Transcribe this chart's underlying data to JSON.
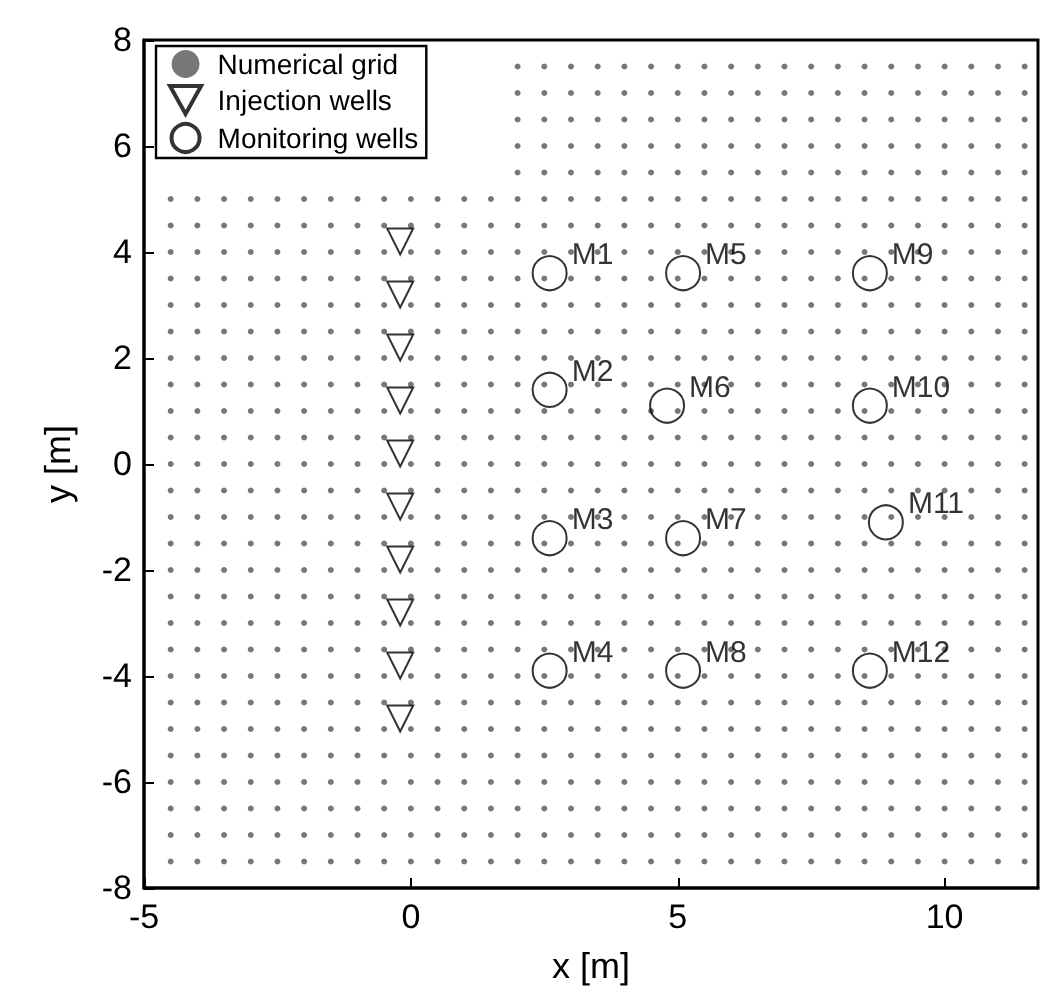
{
  "chart_data": {
    "type": "scatter",
    "xlabel": "x [m]",
    "ylabel": "y [m]",
    "xlim": [
      -5,
      11.75
    ],
    "ylim": [
      -8,
      8
    ],
    "xticks": [
      -5,
      0,
      5,
      10
    ],
    "yticks": [
      -8,
      -6,
      -4,
      -2,
      0,
      2,
      4,
      6,
      8
    ],
    "grid": false,
    "legend": "top left",
    "series": [
      {
        "name": "Numerical grid",
        "color": "#555555",
        "marker": "circle",
        "x": [
          2,
          2.5,
          3,
          3.5,
          4,
          4.5,
          5,
          5.5,
          6,
          6.5,
          7,
          7.5,
          8,
          8.5,
          9,
          9.5,
          10,
          10.5,
          11,
          11.5,
          2,
          2.5,
          3,
          3.5,
          4,
          4.5,
          5,
          5.5,
          6,
          6.5,
          7,
          7.5,
          8,
          8.5,
          9,
          9.5,
          10,
          10.5,
          11,
          11.5,
          2,
          2.5,
          3,
          3.5,
          4,
          4.5,
          5,
          5.5,
          6,
          6.5,
          7,
          7.5,
          8,
          8.5,
          9,
          9.5,
          10,
          10.5,
          11,
          11.5,
          2,
          2.5,
          3,
          3.5,
          4,
          4.5,
          5,
          5.5,
          6,
          6.5,
          7,
          7.5,
          8,
          8.5,
          9,
          9.5,
          10,
          10.5,
          11,
          11.5,
          2,
          2.5,
          3,
          3.5,
          4,
          4.5,
          5,
          5.5,
          6,
          6.5,
          7,
          7.5,
          8,
          8.5,
          9,
          9.5,
          10,
          10.5,
          11,
          11.5,
          -4.5,
          -4,
          -3.5,
          -3,
          -2.5,
          -2,
          -1.5,
          -1,
          -0.5,
          0,
          0.5,
          1,
          1.5,
          2,
          2.5,
          3,
          3.5,
          4,
          4.5,
          5,
          5.5,
          6,
          6.5,
          7,
          7.5,
          8,
          8.5,
          9,
          9.5,
          10,
          10.5,
          11,
          11.5,
          -4.5,
          -4,
          -3.5,
          -3,
          -2.5,
          -2,
          -1.5,
          -1,
          -0.5,
          0,
          0.5,
          1,
          1.5,
          2,
          2.5,
          3,
          3.5,
          4,
          4.5,
          5,
          5.5,
          6,
          6.5,
          7,
          7.5,
          8,
          8.5,
          9,
          9.5,
          10,
          10.5,
          11,
          11.5,
          -4.5,
          -4,
          -3.5,
          -3,
          -2.5,
          -2,
          -1.5,
          -1,
          -0.5,
          0,
          0.5,
          1,
          1.5,
          2,
          2.5,
          3,
          3.5,
          4,
          4.5,
          5,
          5.5,
          6,
          6.5,
          7,
          7.5,
          8,
          8.5,
          9,
          9.5,
          10,
          10.5,
          11,
          11.5,
          -4.5,
          -4,
          -3.5,
          -3,
          -2.5,
          -2,
          -1.5,
          -1,
          -0.5,
          0,
          0.5,
          1,
          1.5,
          2,
          2.5,
          3,
          3.5,
          4,
          4.5,
          5,
          5.5,
          6,
          6.5,
          7,
          7.5,
          8,
          8.5,
          9,
          9.5,
          10,
          10.5,
          11,
          11.5,
          -4.5,
          -4,
          -3.5,
          -3,
          -2.5,
          -2,
          -1.5,
          -1,
          -0.5,
          0,
          0.5,
          1,
          1.5,
          2,
          2.5,
          3,
          3.5,
          4,
          4.5,
          5,
          5.5,
          6,
          6.5,
          7,
          7.5,
          8,
          8.5,
          9,
          9.5,
          10,
          10.5,
          11,
          11.5,
          -4.5,
          -4,
          -3.5,
          -3,
          -2.5,
          -2,
          -1.5,
          -1,
          -0.5,
          0,
          0.5,
          1,
          1.5,
          2,
          2.5,
          3,
          3.5,
          4,
          4.5,
          5,
          5.5,
          6,
          6.5,
          7,
          7.5,
          8,
          8.5,
          9,
          9.5,
          10,
          10.5,
          11,
          11.5,
          -4.5,
          -4,
          -3.5,
          -3,
          -2.5,
          -2,
          -1.5,
          -1,
          -0.5,
          0,
          0.5,
          1,
          1.5,
          2,
          2.5,
          3,
          3.5,
          4,
          4.5,
          5,
          5.5,
          6,
          6.5,
          7,
          7.5,
          8,
          8.5,
          9,
          9.5,
          10,
          10.5,
          11,
          11.5,
          -4.5,
          -4,
          -3.5,
          -3,
          -2.5,
          -2,
          -1.5,
          -1,
          -0.5,
          0,
          0.5,
          1,
          1.5,
          2,
          2.5,
          3,
          3.5,
          4,
          4.5,
          5,
          5.5,
          6,
          6.5,
          7,
          7.5,
          8,
          8.5,
          9,
          9.5,
          10,
          10.5,
          11,
          11.5,
          -4.5,
          -4,
          -3.5,
          -3,
          -2.5,
          -2,
          -1.5,
          -1,
          -0.5,
          0,
          0.5,
          1,
          1.5,
          2,
          2.5,
          3,
          3.5,
          4,
          4.5,
          5,
          5.5,
          6,
          6.5,
          7,
          7.5,
          8,
          8.5,
          9,
          9.5,
          10,
          10.5,
          11,
          11.5,
          -4.5,
          -4,
          -3.5,
          -3,
          -2.5,
          -2,
          -1.5,
          -1,
          -0.5,
          0,
          0.5,
          1,
          1.5,
          2,
          2.5,
          3,
          3.5,
          4,
          4.5,
          5,
          5.5,
          6,
          6.5,
          7,
          7.5,
          8,
          8.5,
          9,
          9.5,
          10,
          10.5,
          11,
          11.5,
          -4.5,
          -4,
          -3.5,
          -3,
          -2.5,
          -2,
          -1.5,
          -1,
          -0.5,
          0,
          0.5,
          1,
          1.5,
          2,
          2.5,
          3,
          3.5,
          4,
          4.5,
          5,
          5.5,
          6,
          6.5,
          7,
          7.5,
          8,
          8.5,
          9,
          9.5,
          10,
          10.5,
          11,
          11.5,
          -4.5,
          -4,
          -3.5,
          -3,
          -2.5,
          -2,
          -1.5,
          -1,
          -0.5,
          0,
          0.5,
          1,
          1.5,
          2,
          2.5,
          3,
          3.5,
          4,
          4.5,
          5,
          5.5,
          6,
          6.5,
          7,
          7.5,
          8,
          8.5,
          9,
          9.5,
          10,
          10.5,
          11,
          11.5,
          -4.5,
          -4,
          -3.5,
          -3,
          -2.5,
          -2,
          -1.5,
          -1,
          -0.5,
          0,
          0.5,
          1,
          1.5,
          2,
          2.5,
          3,
          3.5,
          4,
          4.5,
          5,
          5.5,
          6,
          6.5,
          7,
          7.5,
          8,
          8.5,
          9,
          9.5,
          10,
          10.5,
          11,
          11.5,
          -4.5,
          -4,
          -3.5,
          -3,
          -2.5,
          -2,
          -1.5,
          -1,
          -0.5,
          0,
          0.5,
          1,
          1.5,
          2,
          2.5,
          3,
          3.5,
          4,
          4.5,
          5,
          5.5,
          6,
          6.5,
          7,
          7.5,
          8,
          8.5,
          9,
          9.5,
          10,
          10.5,
          11,
          11.5,
          -4.5,
          -4,
          -3.5,
          -3,
          -2.5,
          -2,
          -1.5,
          -1,
          -0.5,
          0,
          0.5,
          1,
          1.5,
          2,
          2.5,
          3,
          3.5,
          4,
          4.5,
          5,
          5.5,
          6,
          6.5,
          7,
          7.5,
          8,
          8.5,
          9,
          9.5,
          10,
          10.5,
          11,
          11.5,
          -4.5,
          -4,
          -3.5,
          -3,
          -2.5,
          -2,
          -1.5,
          -1,
          -0.5,
          0,
          0.5,
          1,
          1.5,
          2,
          2.5,
          3,
          3.5,
          4,
          4.5,
          5,
          5.5,
          6,
          6.5,
          7,
          7.5,
          8,
          8.5,
          9,
          9.5,
          10,
          10.5,
          11,
          11.5,
          -4.5,
          -4,
          -3.5,
          -3,
          -2.5,
          -2,
          -1.5,
          -1,
          -0.5,
          0,
          0.5,
          1,
          1.5,
          2,
          2.5,
          3,
          3.5,
          4,
          4.5,
          5,
          5.5,
          6,
          6.5,
          7,
          7.5,
          8,
          8.5,
          9,
          9.5,
          10,
          10.5,
          11,
          11.5,
          -4.5,
          -4,
          -3.5,
          -3,
          -2.5,
          -2,
          -1.5,
          -1,
          -0.5,
          0,
          0.5,
          1,
          1.5,
          2,
          2.5,
          3,
          3.5,
          4,
          4.5,
          5,
          5.5,
          6,
          6.5,
          7,
          7.5,
          8,
          8.5,
          9,
          9.5,
          10,
          10.5,
          11,
          11.5,
          -4.5,
          -4,
          -3.5,
          -3,
          -2.5,
          -2,
          -1.5,
          -1,
          -0.5,
          0,
          0.5,
          1,
          1.5,
          2,
          2.5,
          3,
          3.5,
          4,
          4.5,
          5,
          5.5,
          6,
          6.5,
          7,
          7.5,
          8,
          8.5,
          9,
          9.5,
          10,
          10.5,
          11,
          11.5,
          -4.5,
          -4,
          -3.5,
          -3,
          -2.5,
          -2,
          -1.5,
          -1,
          -0.5,
          0,
          0.5,
          1,
          1.5,
          2,
          2.5,
          3,
          3.5,
          4,
          4.5,
          5,
          5.5,
          6,
          6.5,
          7,
          7.5,
          8,
          8.5,
          9,
          9.5,
          10,
          10.5,
          11,
          11.5,
          -4.5,
          -4,
          -3.5,
          -3,
          -2.5,
          -2,
          -1.5,
          -1,
          -0.5,
          0,
          0.5,
          1,
          1.5,
          2,
          2.5,
          3,
          3.5,
          4,
          4.5,
          5,
          5.5,
          6,
          6.5,
          7,
          7.5,
          8,
          8.5,
          9,
          9.5,
          10,
          10.5,
          11,
          11.5,
          -4.5,
          -4,
          -3.5,
          -3,
          -2.5,
          -2,
          -1.5,
          -1,
          -0.5,
          0,
          0.5,
          1,
          1.5,
          2,
          2.5,
          3,
          3.5,
          4,
          4.5,
          5,
          5.5,
          6,
          6.5,
          7,
          7.5,
          8,
          8.5,
          9,
          9.5,
          10,
          10.5,
          11,
          11.5,
          -4.5,
          -4,
          -3.5,
          -3,
          -2.5,
          -2,
          -1.5,
          -1,
          -0.5,
          0,
          0.5,
          1,
          1.5,
          2,
          2.5,
          3,
          3.5,
          4,
          4.5,
          5,
          5.5,
          6,
          6.5,
          7,
          7.5,
          8,
          8.5,
          9,
          9.5,
          10,
          10.5,
          11,
          11.5,
          -4.5,
          -4,
          -3.5,
          -3,
          -2.5,
          -2,
          -1.5,
          -1,
          -0.5,
          0,
          0.5,
          1,
          1.5,
          2,
          2.5,
          3,
          3.5,
          4,
          4.5,
          5,
          5.5,
          6,
          6.5,
          7,
          7.5,
          8,
          8.5,
          9,
          9.5,
          10,
          10.5,
          11,
          11.5,
          -4.5,
          -4,
          -3.5,
          -3,
          -2.5,
          -2,
          -1.5,
          -1,
          -0.5,
          0,
          0.5,
          1,
          1.5,
          2,
          2.5,
          3,
          3.5,
          4,
          4.5,
          5,
          5.5,
          6,
          6.5,
          7,
          7.5,
          8,
          8.5,
          9,
          9.5,
          10,
          10.5,
          11,
          11.5,
          -4.5,
          -4,
          -3.5,
          -3,
          -2.5,
          -2,
          -1.5,
          -1,
          -0.5,
          0,
          0.5,
          1,
          1.5,
          2,
          2.5,
          3,
          3.5,
          4,
          4.5,
          5,
          5.5,
          6,
          6.5,
          7,
          7.5,
          8,
          8.5,
          9,
          9.5,
          10,
          10.5,
          11,
          11.5
        ],
        "values": [
          7.5,
          7.5,
          7.5,
          7.5,
          7.5,
          7.5,
          7.5,
          7.5,
          7.5,
          7.5,
          7.5,
          7.5,
          7.5,
          7.5,
          7.5,
          7.5,
          7.5,
          7.5,
          7.5,
          7.5,
          7,
          7,
          7,
          7,
          7,
          7,
          7,
          7,
          7,
          7,
          7,
          7,
          7,
          7,
          7,
          7,
          7,
          7,
          7,
          7,
          6.5,
          6.5,
          6.5,
          6.5,
          6.5,
          6.5,
          6.5,
          6.5,
          6.5,
          6.5,
          6.5,
          6.5,
          6.5,
          6.5,
          6.5,
          6.5,
          6.5,
          6.5,
          6.5,
          6.5,
          6,
          6,
          6,
          6,
          6,
          6,
          6,
          6,
          6,
          6,
          6,
          6,
          6,
          6,
          6,
          6,
          6,
          6,
          6,
          6,
          5.5,
          5.5,
          5.5,
          5.5,
          5.5,
          5.5,
          5.5,
          5.5,
          5.5,
          5.5,
          5.5,
          5.5,
          5.5,
          5.5,
          5.5,
          5.5,
          5.5,
          5.5,
          5.5,
          5.5,
          5,
          5,
          5,
          5,
          5,
          5,
          5,
          5,
          5,
          5,
          5,
          5,
          5,
          5,
          5,
          5,
          5,
          5,
          5,
          5,
          5,
          5,
          5,
          5,
          5,
          5,
          5,
          5,
          5,
          5,
          5,
          5,
          5,
          4.5,
          4.5,
          4.5,
          4.5,
          4.5,
          4.5,
          4.5,
          4.5,
          4.5,
          4.5,
          4.5,
          4.5,
          4.5,
          4.5,
          4.5,
          4.5,
          4.5,
          4.5,
          4.5,
          4.5,
          4.5,
          4.5,
          4.5,
          4.5,
          4.5,
          4.5,
          4.5,
          4.5,
          4.5,
          4.5,
          4.5,
          4.5,
          4.5,
          4,
          4,
          4,
          4,
          4,
          4,
          4,
          4,
          4,
          4,
          4,
          4,
          4,
          4,
          4,
          4,
          4,
          4,
          4,
          4,
          4,
          4,
          4,
          4,
          4,
          4,
          4,
          4,
          4,
          4,
          4,
          4,
          4,
          3.5,
          3.5,
          3.5,
          3.5,
          3.5,
          3.5,
          3.5,
          3.5,
          3.5,
          3.5,
          3.5,
          3.5,
          3.5,
          3.5,
          3.5,
          3.5,
          3.5,
          3.5,
          3.5,
          3.5,
          3.5,
          3.5,
          3.5,
          3.5,
          3.5,
          3.5,
          3.5,
          3.5,
          3.5,
          3.5,
          3.5,
          3.5,
          3.5,
          3,
          3,
          3,
          3,
          3,
          3,
          3,
          3,
          3,
          3,
          3,
          3,
          3,
          3,
          3,
          3,
          3,
          3,
          3,
          3,
          3,
          3,
          3,
          3,
          3,
          3,
          3,
          3,
          3,
          3,
          3,
          3,
          3,
          2.5,
          2.5,
          2.5,
          2.5,
          2.5,
          2.5,
          2.5,
          2.5,
          2.5,
          2.5,
          2.5,
          2.5,
          2.5,
          2.5,
          2.5,
          2.5,
          2.5,
          2.5,
          2.5,
          2.5,
          2.5,
          2.5,
          2.5,
          2.5,
          2.5,
          2.5,
          2.5,
          2.5,
          2.5,
          2.5,
          2.5,
          2.5,
          2.5,
          2,
          2,
          2,
          2,
          2,
          2,
          2,
          2,
          2,
          2,
          2,
          2,
          2,
          2,
          2,
          2,
          2,
          2,
          2,
          2,
          2,
          2,
          2,
          2,
          2,
          2,
          2,
          2,
          2,
          2,
          2,
          2,
          2,
          1.5,
          1.5,
          1.5,
          1.5,
          1.5,
          1.5,
          1.5,
          1.5,
          1.5,
          1.5,
          1.5,
          1.5,
          1.5,
          1.5,
          1.5,
          1.5,
          1.5,
          1.5,
          1.5,
          1.5,
          1.5,
          1.5,
          1.5,
          1.5,
          1.5,
          1.5,
          1.5,
          1.5,
          1.5,
          1.5,
          1.5,
          1.5,
          1.5,
          1,
          1,
          1,
          1,
          1,
          1,
          1,
          1,
          1,
          1,
          1,
          1,
          1,
          1,
          1,
          1,
          1,
          1,
          1,
          1,
          1,
          1,
          1,
          1,
          1,
          1,
          1,
          1,
          1,
          1,
          1,
          1,
          1,
          0.5,
          0.5,
          0.5,
          0.5,
          0.5,
          0.5,
          0.5,
          0.5,
          0.5,
          0.5,
          0.5,
          0.5,
          0.5,
          0.5,
          0.5,
          0.5,
          0.5,
          0.5,
          0.5,
          0.5,
          0.5,
          0.5,
          0.5,
          0.5,
          0.5,
          0.5,
          0.5,
          0.5,
          0.5,
          0.5,
          0.5,
          0.5,
          0.5,
          0,
          0,
          0,
          0,
          0,
          0,
          0,
          0,
          0,
          0,
          0,
          0,
          0,
          0,
          0,
          0,
          0,
          0,
          0,
          0,
          0,
          0,
          0,
          0,
          0,
          0,
          0,
          0,
          0,
          0,
          0,
          0,
          0,
          -0.5,
          -0.5,
          -0.5,
          -0.5,
          -0.5,
          -0.5,
          -0.5,
          -0.5,
          -0.5,
          -0.5,
          -0.5,
          -0.5,
          -0.5,
          -0.5,
          -0.5,
          -0.5,
          -0.5,
          -0.5,
          -0.5,
          -0.5,
          -0.5,
          -0.5,
          -0.5,
          -0.5,
          -0.5,
          -0.5,
          -0.5,
          -0.5,
          -0.5,
          -0.5,
          -0.5,
          -0.5,
          -0.5,
          -1,
          -1,
          -1,
          -1,
          -1,
          -1,
          -1,
          -1,
          -1,
          -1,
          -1,
          -1,
          -1,
          -1,
          -1,
          -1,
          -1,
          -1,
          -1,
          -1,
          -1,
          -1,
          -1,
          -1,
          -1,
          -1,
          -1,
          -1,
          -1,
          -1,
          -1,
          -1,
          -1,
          -1.5,
          -1.5,
          -1.5,
          -1.5,
          -1.5,
          -1.5,
          -1.5,
          -1.5,
          -1.5,
          -1.5,
          -1.5,
          -1.5,
          -1.5,
          -1.5,
          -1.5,
          -1.5,
          -1.5,
          -1.5,
          -1.5,
          -1.5,
          -1.5,
          -1.5,
          -1.5,
          -1.5,
          -1.5,
          -1.5,
          -1.5,
          -1.5,
          -1.5,
          -1.5,
          -1.5,
          -1.5,
          -1.5,
          -2,
          -2,
          -2,
          -2,
          -2,
          -2,
          -2,
          -2,
          -2,
          -2,
          -2,
          -2,
          -2,
          -2,
          -2,
          -2,
          -2,
          -2,
          -2,
          -2,
          -2,
          -2,
          -2,
          -2,
          -2,
          -2,
          -2,
          -2,
          -2,
          -2,
          -2,
          -2,
          -2,
          -2.5,
          -2.5,
          -2.5,
          -2.5,
          -2.5,
          -2.5,
          -2.5,
          -2.5,
          -2.5,
          -2.5,
          -2.5,
          -2.5,
          -2.5,
          -2.5,
          -2.5,
          -2.5,
          -2.5,
          -2.5,
          -2.5,
          -2.5,
          -2.5,
          -2.5,
          -2.5,
          -2.5,
          -2.5,
          -2.5,
          -2.5,
          -2.5,
          -2.5,
          -2.5,
          -2.5,
          -2.5,
          -2.5,
          -3,
          -3,
          -3,
          -3,
          -3,
          -3,
          -3,
          -3,
          -3,
          -3,
          -3,
          -3,
          -3,
          -3,
          -3,
          -3,
          -3,
          -3,
          -3,
          -3,
          -3,
          -3,
          -3,
          -3,
          -3,
          -3,
          -3,
          -3,
          -3,
          -3,
          -3,
          -3,
          -3,
          -3.5,
          -3.5,
          -3.5,
          -3.5,
          -3.5,
          -3.5,
          -3.5,
          -3.5,
          -3.5,
          -3.5,
          -3.5,
          -3.5,
          -3.5,
          -3.5,
          -3.5,
          -3.5,
          -3.5,
          -3.5,
          -3.5,
          -3.5,
          -3.5,
          -3.5,
          -3.5,
          -3.5,
          -3.5,
          -3.5,
          -3.5,
          -3.5,
          -3.5,
          -3.5,
          -3.5,
          -3.5,
          -3.5,
          -4,
          -4,
          -4,
          -4,
          -4,
          -4,
          -4,
          -4,
          -4,
          -4,
          -4,
          -4,
          -4,
          -4,
          -4,
          -4,
          -4,
          -4,
          -4,
          -4,
          -4,
          -4,
          -4,
          -4,
          -4,
          -4,
          -4,
          -4,
          -4,
          -4,
          -4,
          -4,
          -4,
          -4.5,
          -4.5,
          -4.5,
          -4.5,
          -4.5,
          -4.5,
          -4.5,
          -4.5,
          -4.5,
          -4.5,
          -4.5,
          -4.5,
          -4.5,
          -4.5,
          -4.5,
          -4.5,
          -4.5,
          -4.5,
          -4.5,
          -4.5,
          -4.5,
          -4.5,
          -4.5,
          -4.5,
          -4.5,
          -4.5,
          -4.5,
          -4.5,
          -4.5,
          -4.5,
          -4.5,
          -4.5,
          -4.5,
          -5,
          -5,
          -5,
          -5,
          -5,
          -5,
          -5,
          -5,
          -5,
          -5,
          -5,
          -5,
          -5,
          -5,
          -5,
          -5,
          -5,
          -5,
          -5,
          -5,
          -5,
          -5,
          -5,
          -5,
          -5,
          -5,
          -5,
          -5,
          -5,
          -5,
          -5,
          -5,
          -5,
          -5.5,
          -5.5,
          -5.5,
          -5.5,
          -5.5,
          -5.5,
          -5.5,
          -5.5,
          -5.5,
          -5.5,
          -5.5,
          -5.5,
          -5.5,
          -5.5,
          -5.5,
          -5.5,
          -5.5,
          -5.5,
          -5.5,
          -5.5,
          -5.5,
          -5.5,
          -5.5,
          -5.5,
          -5.5,
          -5.5,
          -5.5,
          -5.5,
          -5.5,
          -5.5,
          -5.5,
          -5.5,
          -5.5,
          -6,
          -6,
          -6,
          -6,
          -6,
          -6,
          -6,
          -6,
          -6,
          -6,
          -6,
          -6,
          -6,
          -6,
          -6,
          -6,
          -6,
          -6,
          -6,
          -6,
          -6,
          -6,
          -6,
          -6,
          -6,
          -6,
          -6,
          -6,
          -6,
          -6,
          -6,
          -6,
          -6,
          -6.5,
          -6.5,
          -6.5,
          -6.5,
          -6.5,
          -6.5,
          -6.5,
          -6.5,
          -6.5,
          -6.5,
          -6.5,
          -6.5,
          -6.5,
          -6.5,
          -6.5,
          -6.5,
          -6.5,
          -6.5,
          -6.5,
          -6.5,
          -6.5,
          -6.5,
          -6.5,
          -6.5,
          -6.5,
          -6.5,
          -6.5,
          -6.5,
          -6.5,
          -6.5,
          -6.5,
          -6.5,
          -6.5,
          -7,
          -7,
          -7,
          -7,
          -7,
          -7,
          -7,
          -7,
          -7,
          -7,
          -7,
          -7,
          -7,
          -7,
          -7,
          -7,
          -7,
          -7,
          -7,
          -7,
          -7,
          -7,
          -7,
          -7,
          -7,
          -7,
          -7,
          -7,
          -7,
          -7,
          -7,
          -7,
          -7,
          -7.5,
          -7.5,
          -7.5,
          -7.5,
          -7.5,
          -7.5,
          -7.5,
          -7.5,
          -7.5,
          -7.5,
          -7.5,
          -7.5,
          -7.5,
          -7.5,
          -7.5,
          -7.5,
          -7.5,
          -7.5,
          -7.5,
          -7.5,
          -7.5,
          -7.5,
          -7.5,
          -7.5,
          -7.5,
          -7.5,
          -7.5,
          -7.5,
          -7.5,
          -7.5,
          -7.5,
          -7.5,
          -7.5
        ]
      },
      {
        "name": "Injection wells",
        "color": "#000000",
        "marker": "triangle",
        "x": [
          -0.2,
          -0.2,
          -0.2,
          -0.2,
          -0.2,
          -0.2,
          -0.2,
          -0.2,
          -0.2,
          -0.2
        ],
        "values": [
          4.2,
          3.2,
          2.2,
          1.2,
          0.2,
          -0.8,
          -1.8,
          -2.8,
          -3.8,
          -4.8
        ]
      },
      {
        "name": "Monitoring wells",
        "color": "#000000",
        "marker": "circle",
        "x": [
          2.6,
          2.6,
          2.6,
          2.6,
          5.1,
          4.8,
          5.1,
          5.1,
          8.6,
          8.6,
          8.9,
          8.6
        ],
        "values": [
          3.6,
          1.4,
          -1.4,
          -3.9,
          3.6,
          1.1,
          -1.4,
          -3.9,
          3.6,
          1.1,
          -1.1,
          -3.9
        ],
        "value_labels": [
          "M1",
          "M2",
          "M3",
          "M4",
          "M5",
          "M6",
          "M7",
          "M8",
          "M9",
          "M10",
          "M11",
          "M12"
        ]
      }
    ]
  }
}
